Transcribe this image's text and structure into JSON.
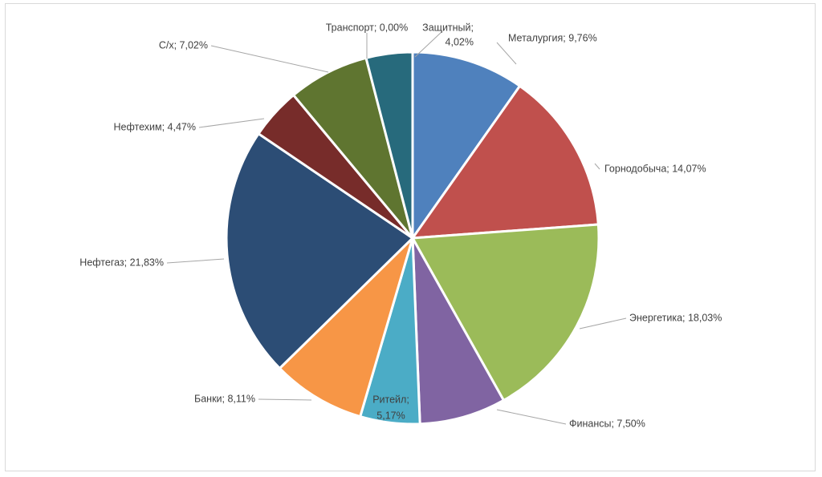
{
  "chart_data": {
    "type": "pie",
    "slices": [
      {
        "name": "Металургия",
        "value": 9.76,
        "label": "Металургия; 9,76%",
        "color": "#4F81BD"
      },
      {
        "name": "Горнодобыча",
        "value": 14.07,
        "label": "Горнодобыча; 14,07%",
        "color": "#C0504D"
      },
      {
        "name": "Энергетика",
        "value": 18.03,
        "label": "Энергетика; 18,03%",
        "color": "#9BBB59"
      },
      {
        "name": "Финансы",
        "value": 7.5,
        "label": "Финансы; 7,50%",
        "color": "#8064A2"
      },
      {
        "name": "Ритейл",
        "value": 5.17,
        "label": "Ритейл; 5,17%",
        "color": "#4BACC6"
      },
      {
        "name": "Банки",
        "value": 8.11,
        "label": "Банки; 8,11%",
        "color": "#F79646"
      },
      {
        "name": "Нефтегаз",
        "value": 21.83,
        "label": "Нефтегаз; 21,83%",
        "color": "#2C4D75"
      },
      {
        "name": "Нефтехим",
        "value": 4.47,
        "label": "Нефтехим; 4,47%",
        "color": "#772C2A"
      },
      {
        "name": "С/х",
        "value": 7.02,
        "label": "С/х; 7,02%",
        "color": "#5F7530"
      },
      {
        "name": "Транспорт",
        "value": 0.0,
        "label": "Транспорт; 0,00%",
        "color": "#4D3B62"
      },
      {
        "name": "Защитный",
        "value": 4.02,
        "label": "Защитный; 4,02%",
        "color": "#276A7C"
      }
    ],
    "start_angle_deg": 0,
    "direction": "clockwise",
    "legend": "none",
    "labels": "outside-with-leader-lines"
  }
}
